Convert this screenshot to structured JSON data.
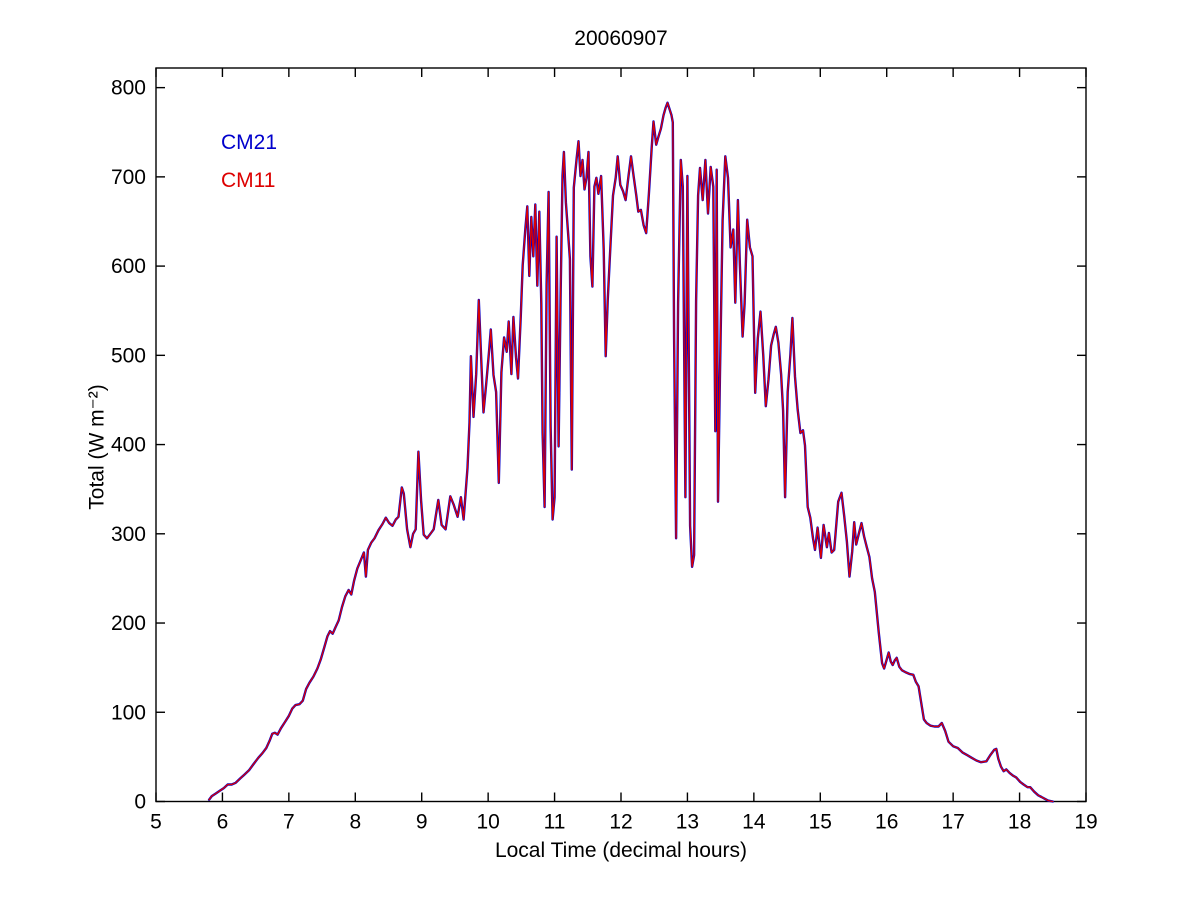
{
  "chart_data": {
    "type": "line",
    "title": "20060907",
    "xlabel": "Local Time (decimal hours)",
    "ylabel": "Total (W m⁻²)",
    "xlim": [
      5,
      19
    ],
    "ylim": [
      0,
      800
    ],
    "axis_top_value": 822,
    "xticks": [
      5,
      6,
      7,
      8,
      9,
      10,
      11,
      12,
      13,
      14,
      15,
      16,
      17,
      18,
      19
    ],
    "yticks": [
      0,
      100,
      200,
      300,
      400,
      500,
      600,
      700,
      800
    ],
    "grid": false,
    "legend_position": "inside-upper-left",
    "series": [
      {
        "name": "CM21",
        "color": "#0000CC"
      },
      {
        "name": "CM11",
        "color": "#DD0000"
      }
    ],
    "note_series_overlap": "CM21 and CM11 traces coincide; shared sampled points below",
    "x": [
      5.8,
      5.84,
      5.9,
      5.96,
      6.02,
      6.08,
      6.14,
      6.2,
      6.27,
      6.33,
      6.4,
      6.47,
      6.54,
      6.6,
      6.66,
      6.71,
      6.75,
      6.79,
      6.83,
      6.88,
      6.94,
      7.0,
      7.05,
      7.1,
      7.16,
      7.21,
      7.26,
      7.31,
      7.37,
      7.43,
      7.48,
      7.53,
      7.58,
      7.62,
      7.66,
      7.7,
      7.75,
      7.8,
      7.85,
      7.9,
      7.94,
      7.98,
      8.03,
      8.08,
      8.13,
      8.16,
      8.19,
      8.24,
      8.29,
      8.35,
      8.41,
      8.46,
      8.51,
      8.56,
      8.61,
      8.65,
      8.7,
      8.73,
      8.78,
      8.83,
      8.87,
      8.91,
      8.95,
      8.99,
      9.03,
      9.08,
      9.13,
      9.18,
      9.25,
      9.3,
      9.36,
      9.43,
      9.48,
      9.54,
      9.59,
      9.63,
      9.69,
      9.72,
      9.74,
      9.78,
      9.82,
      9.86,
      9.9,
      9.93,
      9.97,
      10.01,
      10.04,
      10.08,
      10.12,
      10.16,
      10.2,
      10.24,
      10.28,
      10.31,
      10.35,
      10.38,
      10.42,
      10.45,
      10.49,
      10.52,
      10.56,
      10.59,
      10.62,
      10.65,
      10.68,
      10.71,
      10.74,
      10.77,
      10.8,
      10.82,
      10.85,
      10.88,
      10.91,
      10.94,
      10.97,
      11.0,
      11.03,
      11.06,
      11.09,
      11.12,
      11.14,
      11.17,
      11.2,
      11.23,
      11.26,
      11.29,
      11.33,
      11.36,
      11.39,
      11.42,
      11.45,
      11.48,
      11.51,
      11.54,
      11.57,
      11.6,
      11.63,
      11.66,
      11.7,
      11.74,
      11.77,
      11.8,
      11.84,
      11.88,
      11.92,
      11.95,
      11.99,
      12.03,
      12.07,
      12.11,
      12.15,
      12.19,
      12.23,
      12.26,
      12.3,
      12.34,
      12.38,
      12.42,
      12.46,
      12.49,
      12.53,
      12.56,
      12.6,
      12.64,
      12.67,
      12.7,
      12.73,
      12.76,
      12.78,
      12.8,
      12.83,
      12.86,
      12.9,
      12.93,
      12.97,
      13.0,
      13.04,
      13.07,
      13.1,
      13.13,
      13.16,
      13.19,
      13.23,
      13.27,
      13.31,
      13.35,
      13.39,
      13.42,
      13.44,
      13.46,
      13.49,
      13.53,
      13.57,
      13.61,
      13.65,
      13.69,
      13.72,
      13.76,
      13.79,
      13.83,
      13.86,
      13.9,
      13.94,
      13.98,
      14.02,
      14.06,
      14.1,
      14.14,
      14.18,
      14.22,
      14.26,
      14.3,
      14.33,
      14.37,
      14.41,
      14.44,
      14.47,
      14.51,
      14.55,
      14.58,
      14.62,
      14.66,
      14.7,
      14.74,
      14.77,
      14.81,
      14.85,
      14.89,
      14.92,
      14.96,
      15.01,
      15.05,
      15.1,
      15.13,
      15.17,
      15.21,
      15.27,
      15.32,
      15.36,
      15.4,
      15.44,
      15.48,
      15.51,
      15.54,
      15.58,
      15.62,
      15.66,
      15.7,
      15.74,
      15.78,
      15.82,
      15.88,
      15.93,
      15.96,
      16.0,
      16.03,
      16.06,
      16.09,
      16.12,
      16.15,
      16.19,
      16.23,
      16.28,
      16.34,
      16.4,
      16.44,
      16.48,
      16.52,
      16.56,
      16.6,
      16.66,
      16.72,
      16.78,
      16.83,
      16.88,
      16.93,
      17.0,
      17.07,
      17.14,
      17.21,
      17.28,
      17.35,
      17.42,
      17.5,
      17.56,
      17.62,
      17.65,
      17.68,
      17.72,
      17.76,
      17.8,
      17.85,
      17.9,
      17.95,
      18.01,
      18.06,
      18.12,
      18.16,
      18.22,
      18.28,
      18.33,
      18.38,
      18.43,
      18.5
    ],
    "values": [
      2,
      6,
      9,
      12,
      15,
      19,
      19,
      21,
      26,
      30,
      35,
      42,
      49,
      54,
      60,
      68,
      76,
      77,
      75,
      82,
      89,
      96,
      104,
      108,
      109,
      113,
      126,
      133,
      140,
      149,
      159,
      172,
      185,
      191,
      188,
      195,
      203,
      218,
      230,
      237,
      232,
      247,
      261,
      270,
      279,
      252,
      282,
      290,
      295,
      304,
      311,
      318,
      312,
      309,
      316,
      319,
      352,
      345,
      305,
      285,
      300,
      305,
      392,
      337,
      299,
      295,
      300,
      305,
      338,
      310,
      305,
      342,
      333,
      319,
      341,
      316,
      374,
      425,
      499,
      431,
      479,
      562,
      488,
      436,
      468,
      501,
      529,
      478,
      459,
      357,
      481,
      520,
      504,
      538,
      479,
      543,
      498,
      474,
      542,
      601,
      641,
      667,
      589,
      655,
      611,
      669,
      578,
      661,
      558,
      413,
      330,
      579,
      683,
      421,
      316,
      341,
      633,
      398,
      559,
      701,
      728,
      671,
      640,
      608,
      372,
      688,
      719,
      740,
      701,
      719,
      686,
      699,
      728,
      611,
      577,
      689,
      699,
      681,
      701,
      619,
      499,
      561,
      622,
      679,
      699,
      723,
      691,
      684,
      674,
      699,
      723,
      701,
      679,
      661,
      663,
      646,
      637,
      681,
      731,
      762,
      736,
      744,
      754,
      769,
      777,
      783,
      776,
      769,
      761,
      519,
      295,
      559,
      719,
      689,
      341,
      701,
      309,
      263,
      276,
      561,
      679,
      710,
      674,
      719,
      659,
      711,
      689,
      415,
      708,
      336,
      481,
      651,
      723,
      699,
      621,
      641,
      559,
      674,
      601,
      521,
      558,
      652,
      621,
      611,
      458,
      519,
      549,
      501,
      443,
      473,
      511,
      524,
      532,
      514,
      479,
      438,
      341,
      459,
      501,
      542,
      476,
      439,
      413,
      416,
      399,
      330,
      318,
      295,
      282,
      307,
      273,
      310,
      285,
      301,
      279,
      282,
      336,
      346,
      320,
      291,
      252,
      280,
      313,
      288,
      300,
      312,
      297,
      285,
      274,
      250,
      235,
      190,
      155,
      149,
      159,
      167,
      157,
      153,
      158,
      161,
      151,
      147,
      145,
      143,
      142,
      134,
      129,
      110,
      92,
      88,
      85,
      84,
      84,
      88,
      79,
      67,
      62,
      60,
      55,
      52,
      49,
      46,
      44,
      45,
      52,
      58,
      59,
      48,
      39,
      34,
      36,
      32,
      29,
      27,
      22,
      19,
      16,
      16,
      11,
      7,
      5,
      3,
      1,
      0
    ]
  },
  "frame": {
    "background": "#FFFFFF",
    "axis_color": "#000000"
  }
}
